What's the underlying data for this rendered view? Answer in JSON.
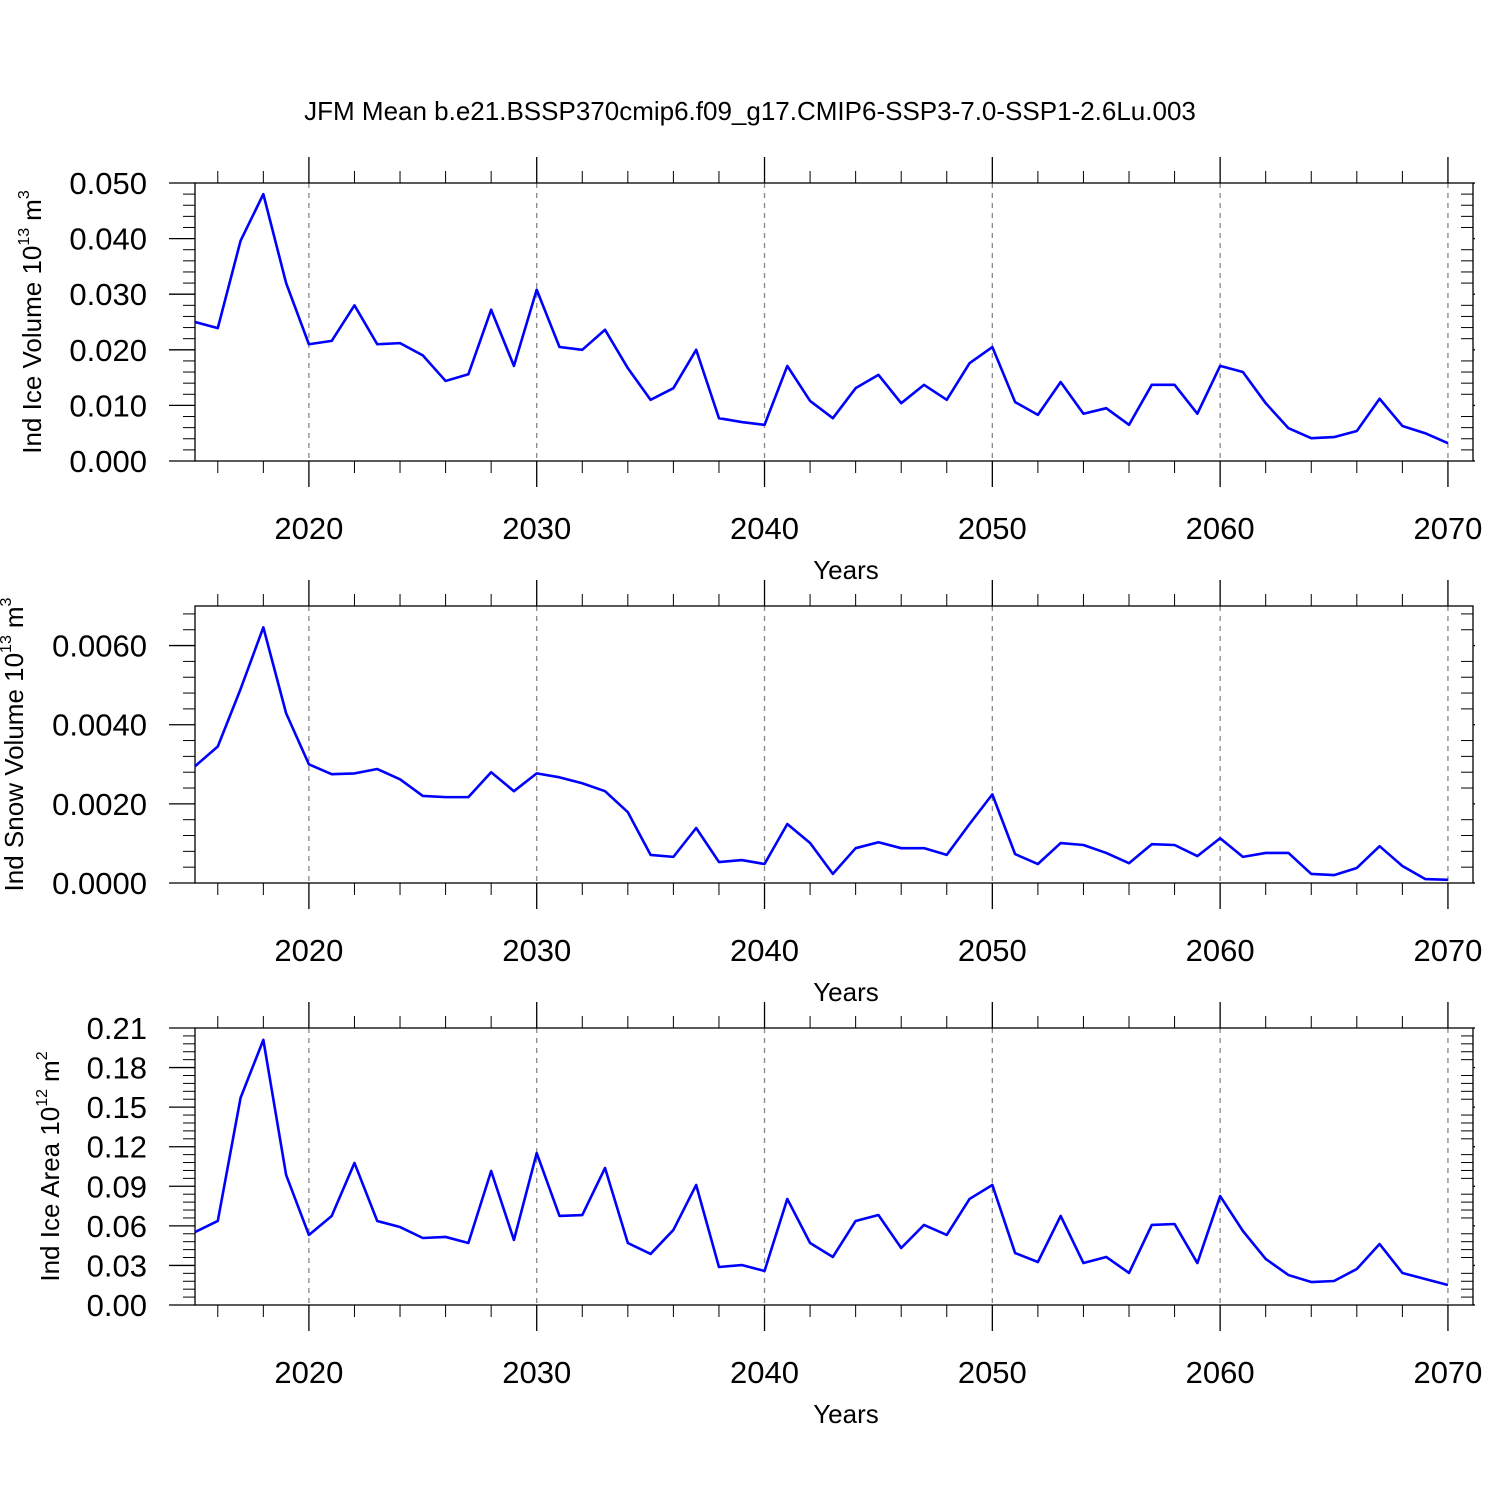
{
  "title": "JFM Mean b.e21.BSSP370cmip6.f09_g17.CMIP6-SSP3-7.0-SSP1-2.6Lu.003",
  "chart_data": [
    {
      "type": "line",
      "color": "#0000ff",
      "xlabel": "Years",
      "ylabel_parts": [
        "Ind Ice Volume 10",
        "13",
        "m",
        "3"
      ],
      "x": [
        2015,
        2016,
        2017,
        2018,
        2019,
        2020,
        2021,
        2022,
        2023,
        2024,
        2025,
        2026,
        2027,
        2028,
        2029,
        2030,
        2031,
        2032,
        2033,
        2034,
        2035,
        2036,
        2037,
        2038,
        2039,
        2040,
        2041,
        2042,
        2043,
        2044,
        2045,
        2046,
        2047,
        2048,
        2049,
        2050,
        2051,
        2052,
        2053,
        2054,
        2055,
        2056,
        2057,
        2058,
        2059,
        2060,
        2061,
        2062,
        2063,
        2064,
        2065,
        2066,
        2067,
        2068,
        2069,
        2070
      ],
      "values": [
        0.025,
        0.0239,
        0.0396,
        0.048,
        0.032,
        0.021,
        0.0216,
        0.028,
        0.021,
        0.0212,
        0.019,
        0.0144,
        0.0156,
        0.0272,
        0.0171,
        0.0308,
        0.0205,
        0.02,
        0.0236,
        0.0167,
        0.011,
        0.0131,
        0.02,
        0.0077,
        0.007,
        0.0065,
        0.0171,
        0.0108,
        0.0077,
        0.0131,
        0.0155,
        0.0104,
        0.0137,
        0.011,
        0.0176,
        0.0205,
        0.0106,
        0.0083,
        0.0142,
        0.0085,
        0.0095,
        0.0065,
        0.0137,
        0.0137,
        0.0085,
        0.0171,
        0.016,
        0.0104,
        0.0059,
        0.0041,
        0.0043,
        0.0054,
        0.0112,
        0.0063,
        0.005,
        0.0032
      ],
      "xlim": [
        2015,
        2071.1
      ],
      "xticks": [
        2020,
        2030,
        2040,
        2050,
        2060,
        2070
      ],
      "ylim": [
        0,
        0.05
      ],
      "yticks": [
        {
          "value": 0,
          "label": "0.000"
        },
        {
          "value": 0.01,
          "label": "0.010"
        },
        {
          "value": 0.02,
          "label": "0.020"
        },
        {
          "value": 0.03,
          "label": "0.030"
        },
        {
          "value": 0.04,
          "label": "0.040"
        },
        {
          "value": 0.05,
          "label": "0.050"
        }
      ],
      "grid": "x-dashed"
    },
    {
      "type": "line",
      "color": "#0000ff",
      "xlabel": "Years",
      "ylabel_parts": [
        "Ind Snow Volume 10",
        "13",
        "m",
        "3"
      ],
      "x": [
        2015,
        2016,
        2017,
        2018,
        2019,
        2020,
        2021,
        2022,
        2023,
        2024,
        2025,
        2026,
        2027,
        2028,
        2029,
        2030,
        2031,
        2032,
        2033,
        2034,
        2035,
        2036,
        2037,
        2038,
        2039,
        2040,
        2041,
        2042,
        2043,
        2044,
        2045,
        2046,
        2047,
        2048,
        2049,
        2050,
        2051,
        2052,
        2053,
        2054,
        2055,
        2056,
        2057,
        2058,
        2059,
        2060,
        2061,
        2062,
        2063,
        2064,
        2065,
        2066,
        2067,
        2068,
        2069,
        2070
      ],
      "values": [
        0.00295,
        0.00345,
        0.0049,
        0.00646,
        0.00429,
        0.003,
        0.00275,
        0.00277,
        0.00288,
        0.00262,
        0.0022,
        0.00217,
        0.00217,
        0.0028,
        0.00232,
        0.00277,
        0.00267,
        0.00252,
        0.00232,
        0.00179,
        0.00071,
        0.00066,
        0.00139,
        0.00053,
        0.00058,
        0.00048,
        0.00149,
        0.00101,
        0.00023,
        0.00088,
        0.00103,
        0.00088,
        0.00088,
        0.00071,
        0.00149,
        0.00224,
        0.00073,
        0.00048,
        0.00101,
        0.00096,
        0.00076,
        0.0005,
        0.00098,
        0.00096,
        0.00068,
        0.00113,
        0.00066,
        0.00076,
        0.00076,
        0.00023,
        0.0002,
        0.00038,
        0.00093,
        0.00043,
        0.0001,
        8e-05
      ],
      "xlim": [
        2015,
        2071.1
      ],
      "xticks": [
        2020,
        2030,
        2040,
        2050,
        2060,
        2070
      ],
      "ylim": [
        0,
        0.007
      ],
      "yticks": [
        {
          "value": 0,
          "label": "0.0000"
        },
        {
          "value": 0.002,
          "label": "0.0020"
        },
        {
          "value": 0.004,
          "label": "0.0040"
        },
        {
          "value": 0.006,
          "label": "0.0060"
        }
      ],
      "grid": "x-dashed"
    },
    {
      "type": "line",
      "color": "#0000ff",
      "xlabel": "Years",
      "ylabel_parts": [
        "Ind Ice Area 10",
        "12",
        "m",
        "2"
      ],
      "x": [
        2015,
        2016,
        2017,
        2018,
        2019,
        2020,
        2021,
        2022,
        2023,
        2024,
        2025,
        2026,
        2027,
        2028,
        2029,
        2030,
        2031,
        2032,
        2033,
        2034,
        2035,
        2036,
        2037,
        2038,
        2039,
        2040,
        2041,
        2042,
        2043,
        2044,
        2045,
        2046,
        2047,
        2048,
        2049,
        2050,
        2051,
        2052,
        2053,
        2054,
        2055,
        2056,
        2057,
        2058,
        2059,
        2060,
        2061,
        2062,
        2063,
        2064,
        2065,
        2066,
        2067,
        2068,
        2069,
        2070
      ],
      "values": [
        0.0553,
        0.0637,
        0.157,
        0.201,
        0.0986,
        0.0531,
        0.0675,
        0.1077,
        0.0637,
        0.0591,
        0.0508,
        0.0516,
        0.047,
        0.1016,
        0.0493,
        0.1152,
        0.0675,
        0.0682,
        0.1039,
        0.047,
        0.0387,
        0.0569,
        0.091,
        0.0288,
        0.0303,
        0.0258,
        0.0804,
        0.047,
        0.0364,
        0.0637,
        0.0682,
        0.0432,
        0.0607,
        0.0531,
        0.0804,
        0.091,
        0.0394,
        0.0326,
        0.0675,
        0.0318,
        0.0364,
        0.0243,
        0.0607,
        0.0614,
        0.0318,
        0.0826,
        0.0561,
        0.0349,
        0.0227,
        0.0174,
        0.0182,
        0.0273,
        0.0462,
        0.0243,
        0.0197,
        0.0152
      ],
      "xlim": [
        2015,
        2071.1
      ],
      "xticks": [
        2020,
        2030,
        2040,
        2050,
        2060,
        2070
      ],
      "ylim": [
        0,
        0.21
      ],
      "yticks": [
        {
          "value": 0,
          "label": "0.00"
        },
        0.03,
        0.06,
        0.09,
        0.12,
        0.15,
        0.18,
        0.21
      ],
      "grid": "x-dashed"
    }
  ]
}
